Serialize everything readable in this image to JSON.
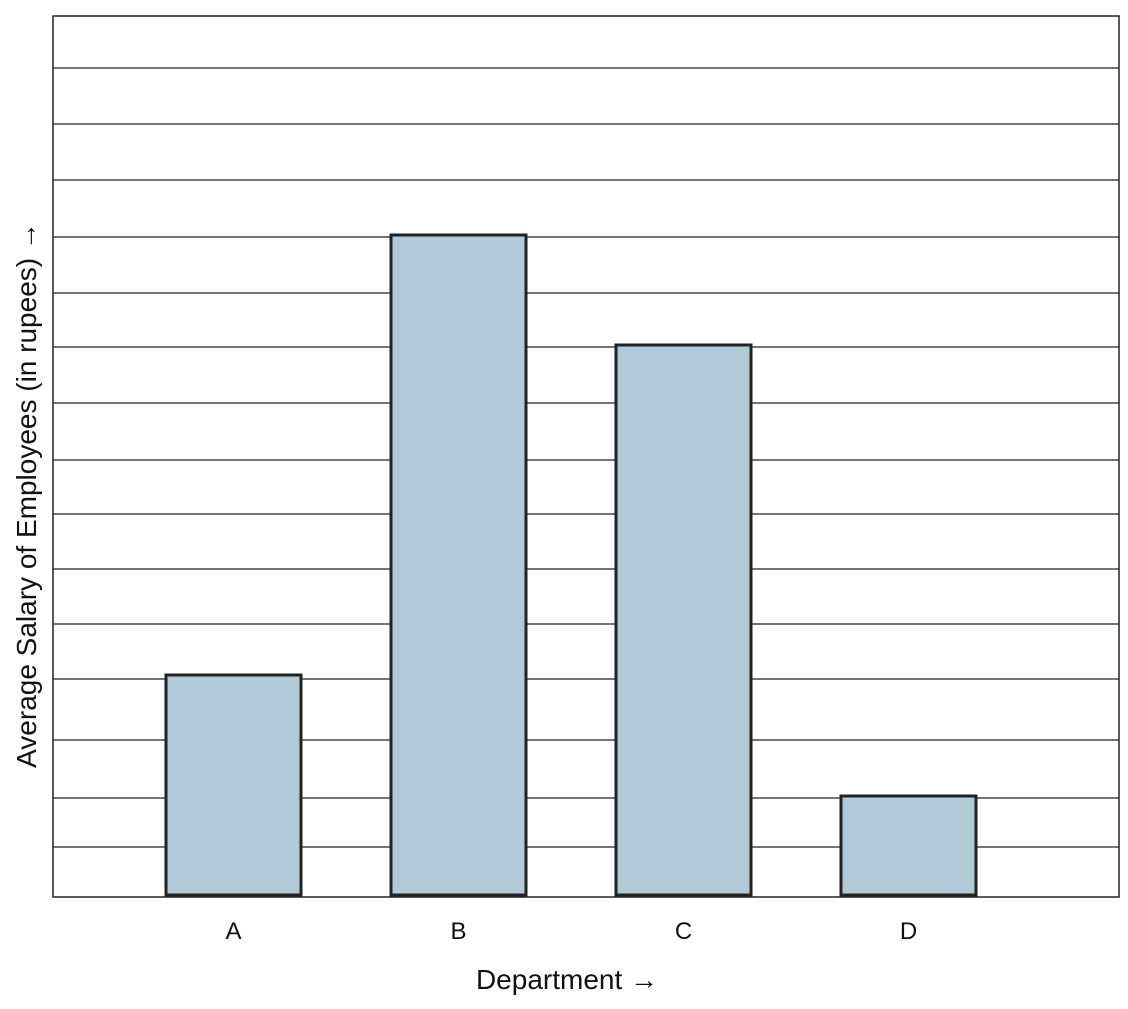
{
  "chart_data": {
    "type": "bar",
    "categories": [
      "A",
      "B",
      "C",
      "D"
    ],
    "values": [
      4,
      12,
      10,
      1.8
    ],
    "xlabel": "Department →",
    "ylabel": "Average Salary of Employees (in rupees) →",
    "grid": true,
    "legend": "none",
    "colors": {
      "bar_fill": "#b2c9d8",
      "bar_stroke": "#222222",
      "grid": "#222222",
      "frame": "#222222"
    }
  }
}
